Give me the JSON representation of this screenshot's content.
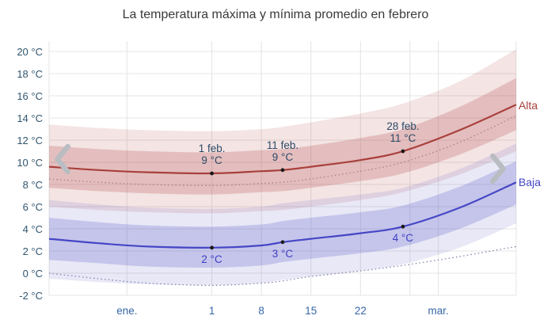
{
  "title": "La temperatura máxima y mínima promedio en febrero",
  "right_labels": {
    "high": "Alta",
    "low": "Baja"
  },
  "nav": {
    "prev_label": "periodo anterior",
    "next_label": "periodo siguiente"
  },
  "colors": {
    "grid": "#e4e4e4",
    "y_label": "#31556f",
    "x_label": "#3566a8",
    "annotation_high": "#2b4a66",
    "annotation_low": "#3e3ec4",
    "dot": "#1a1a1a",
    "chevron": "#b9bdc1",
    "high_line": "#a8403c",
    "low_line": "#4646c6",
    "high_band_inner": "rgba(178,76,76,0.25)",
    "high_band_outer": "rgba(178,76,76,0.15)",
    "low_band_inner": "rgba(92,92,198,0.25)",
    "low_band_outer": "rgba(92,92,198,0.14)",
    "perceived_high_dotted": "#a57f7b",
    "perceived_low_dotted": "#7d7da8"
  },
  "chart_data": {
    "type": "line",
    "title": "La temperatura máxima y mínima promedio en febrero",
    "x_axis_note": "day 0 = 9 ene., day 23 = 1 feb., day 50 = 28 feb., day 66 = 16 mar.",
    "x_domain": [
      0,
      66
    ],
    "y_unit": "°C",
    "y_ticks": [
      20,
      18,
      16,
      14,
      12,
      10,
      8,
      6,
      4,
      2,
      0,
      -2
    ],
    "x_ticks": [
      {
        "day": 11,
        "label": "ene."
      },
      {
        "day": 23,
        "label": "1"
      },
      {
        "day": 30,
        "label": "8"
      },
      {
        "day": 37,
        "label": "15"
      },
      {
        "day": 44,
        "label": "22"
      },
      {
        "day": 55,
        "label": "mar."
      }
    ],
    "extra_gridline_days": [
      0,
      51,
      66
    ],
    "days": [
      0,
      7,
      14,
      23,
      30,
      33,
      37,
      44,
      50,
      58,
      66
    ],
    "bands": [
      {
        "name": "high-outer-band",
        "fill": "rgba(178,76,76,0.15)",
        "upper": [
          13.4,
          13.1,
          12.9,
          12.8,
          13.0,
          13.2,
          13.6,
          14.4,
          15.3,
          17.3,
          20.2
        ],
        "lower": [
          6.0,
          5.7,
          5.5,
          5.4,
          5.6,
          5.7,
          6.0,
          6.6,
          7.3,
          8.9,
          11.0
        ]
      },
      {
        "name": "low-outer-band",
        "fill": "rgba(92,92,198,0.14)",
        "upper": [
          6.6,
          6.2,
          5.9,
          5.8,
          6.0,
          6.3,
          6.6,
          7.1,
          7.7,
          9.4,
          11.7
        ],
        "lower": [
          -0.5,
          -0.8,
          -1.0,
          -1.1,
          -0.9,
          -0.6,
          -0.3,
          0.2,
          0.8,
          2.3,
          4.5
        ]
      },
      {
        "name": "high-inner-band",
        "fill": "rgba(178,76,76,0.25)",
        "upper": [
          11.5,
          11.2,
          11.0,
          10.9,
          11.1,
          11.2,
          11.5,
          12.2,
          13.0,
          15.0,
          17.6
        ],
        "lower": [
          7.7,
          7.4,
          7.2,
          7.1,
          7.3,
          7.4,
          7.7,
          8.3,
          9.0,
          10.7,
          12.9
        ]
      },
      {
        "name": "low-inner-band",
        "fill": "rgba(92,92,198,0.25)",
        "upper": [
          5.0,
          4.6,
          4.3,
          4.2,
          4.4,
          4.7,
          5.0,
          5.5,
          6.1,
          7.8,
          10.1
        ],
        "lower": [
          1.2,
          0.9,
          0.6,
          0.5,
          0.7,
          1.0,
          1.3,
          1.8,
          2.4,
          4.0,
          6.2
        ]
      }
    ],
    "series": [
      {
        "name": "perceived-high-line",
        "style": "dotted",
        "color": "#a57f7b",
        "width": 1.2,
        "values": [
          8.5,
          8.2,
          8.0,
          7.9,
          8.1,
          8.2,
          8.5,
          9.2,
          10.0,
          11.8,
          14.2
        ]
      },
      {
        "name": "perceived-low-line",
        "style": "dotted",
        "color": "#7d7da8",
        "width": 1.2,
        "values": [
          0.0,
          -0.5,
          -0.9,
          -1.1,
          -0.9,
          -0.7,
          -0.3,
          0.2,
          0.7,
          1.5,
          2.4
        ]
      },
      {
        "name": "high-temp-line",
        "label": "Alta",
        "style": "solid",
        "color": "#a8403c",
        "width": 2.2,
        "values": [
          9.6,
          9.3,
          9.1,
          9.0,
          9.2,
          9.3,
          9.6,
          10.2,
          11.0,
          12.9,
          15.2
        ]
      },
      {
        "name": "low-temp-line",
        "label": "Baja",
        "style": "solid",
        "color": "#4646c6",
        "width": 2.2,
        "values": [
          3.1,
          2.7,
          2.4,
          2.3,
          2.5,
          2.8,
          3.1,
          3.6,
          4.2,
          5.9,
          8.2
        ]
      }
    ],
    "annotations": {
      "high": [
        {
          "day": 23,
          "date": "1 feb.",
          "temp": "9 °C",
          "value": 9.0
        },
        {
          "day": 33,
          "date": "11 feb.",
          "temp": "9 °C",
          "value": 9.3
        },
        {
          "day": 50,
          "date": "28 feb.",
          "temp": "11 °C",
          "value": 11.0
        }
      ],
      "low": [
        {
          "day": 23,
          "temp": "2 °C",
          "value": 2.3
        },
        {
          "day": 33,
          "temp": "3 °C",
          "value": 2.8
        },
        {
          "day": 50,
          "temp": "4 °C",
          "value": 4.2
        }
      ]
    }
  }
}
